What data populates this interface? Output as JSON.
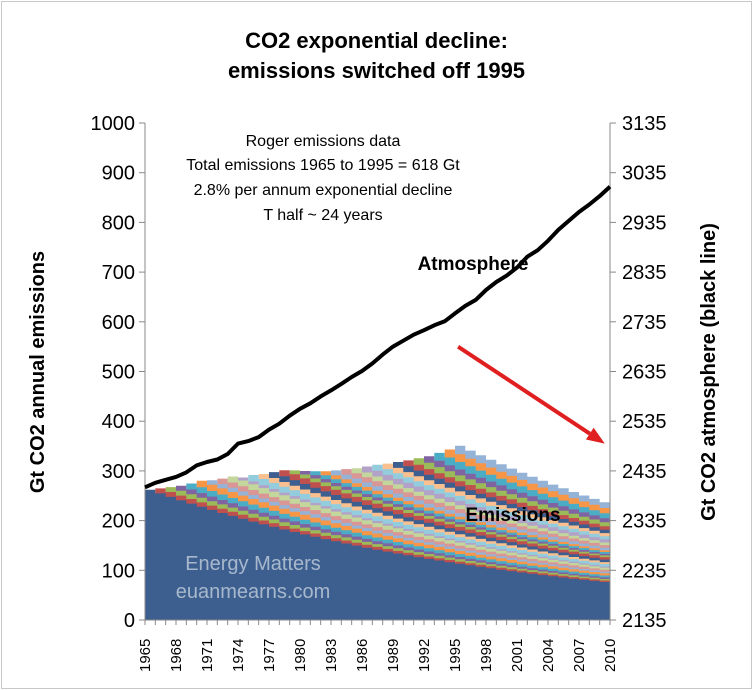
{
  "chart_data": {
    "type": "area",
    "title_lines": [
      "CO2 exponential decline:",
      "emissions switched off 1995"
    ],
    "ylabel": "Gt CO2 annual emissions",
    "y2label": "Gt CO2 atmosphere (black line)",
    "ylim": [
      0,
      1000
    ],
    "y2lim": [
      2135,
      3135
    ],
    "yticks": [
      "0",
      "100",
      "200",
      "300",
      "400",
      "500",
      "600",
      "700",
      "800",
      "900",
      "1000"
    ],
    "y2ticks": [
      "2135",
      "2235",
      "2335",
      "2435",
      "2535",
      "2635",
      "2735",
      "2835",
      "2935",
      "3035",
      "3135"
    ],
    "xlim": [
      1965,
      2010
    ],
    "xticks": [
      "1965",
      "1968",
      "1971",
      "1974",
      "1977",
      "1980",
      "1983",
      "1986",
      "1989",
      "1992",
      "1995",
      "1998",
      "2001",
      "2004",
      "2007",
      "2010"
    ],
    "annotation_lines": [
      "Roger emissions data",
      "Total emissions 1965 to 1995 = 618 Gt",
      "2.8% per annum exponential decline",
      "T half ~ 24 years"
    ],
    "watermark_lines": [
      "Energy Matters",
      "euanmearns.com"
    ],
    "atmosphere_label": "Atmosphere",
    "emissions_label": "Emissions",
    "decay_rate": 0.028,
    "cohort_years": [
      1965,
      1966,
      1967,
      1968,
      1969,
      1970,
      1971,
      1972,
      1973,
      1974,
      1975,
      1976,
      1977,
      1978,
      1979,
      1980,
      1981,
      1982,
      1983,
      1984,
      1985,
      1986,
      1987,
      1988,
      1989,
      1990,
      1991,
      1992,
      1993,
      1994,
      1995
    ],
    "cohort_sizes": [
      262,
      10,
      10,
      10,
      12,
      13,
      9,
      11,
      12,
      6,
      13,
      10,
      12,
      12,
      8,
      7,
      8,
      8,
      10,
      11,
      10,
      12,
      12,
      11,
      12,
      12,
      13,
      13,
      16,
      16,
      17
    ],
    "cohort_colors": [
      "#3c5f8f",
      "#c0504d",
      "#9bbb59",
      "#8064a2",
      "#4bacc6",
      "#f79646",
      "#95b3d7",
      "#d99694",
      "#c3d69b",
      "#b3a2c7",
      "#93cddd",
      "#fac090"
    ],
    "atmosphere": {
      "x": [
        1965,
        1966,
        1967,
        1968,
        1969,
        1970,
        1971,
        1972,
        1973,
        1974,
        1975,
        1976,
        1977,
        1978,
        1979,
        1980,
        1981,
        1982,
        1983,
        1984,
        1985,
        1986,
        1987,
        1988,
        1989,
        1990,
        1991,
        1992,
        1993,
        1994,
        1995,
        1996,
        1997,
        1998,
        1999,
        2000,
        2001,
        2002,
        2003,
        2004,
        2005,
        2006,
        2007,
        2008,
        2009,
        2010
      ],
      "y": [
        2402,
        2411,
        2417,
        2423,
        2432,
        2446,
        2453,
        2458,
        2469,
        2490,
        2495,
        2503,
        2518,
        2530,
        2546,
        2560,
        2571,
        2585,
        2597,
        2610,
        2624,
        2636,
        2651,
        2669,
        2685,
        2697,
        2709,
        2718,
        2728,
        2736,
        2752,
        2767,
        2779,
        2799,
        2815,
        2828,
        2844,
        2866,
        2879,
        2898,
        2920,
        2938,
        2956,
        2971,
        2988,
        3007
      ]
    },
    "arrow": {
      "from": {
        "x": 1995.3,
        "y": 550
      },
      "to": {
        "x": 2009.5,
        "y": 355
      },
      "color": "#e02020"
    }
  }
}
